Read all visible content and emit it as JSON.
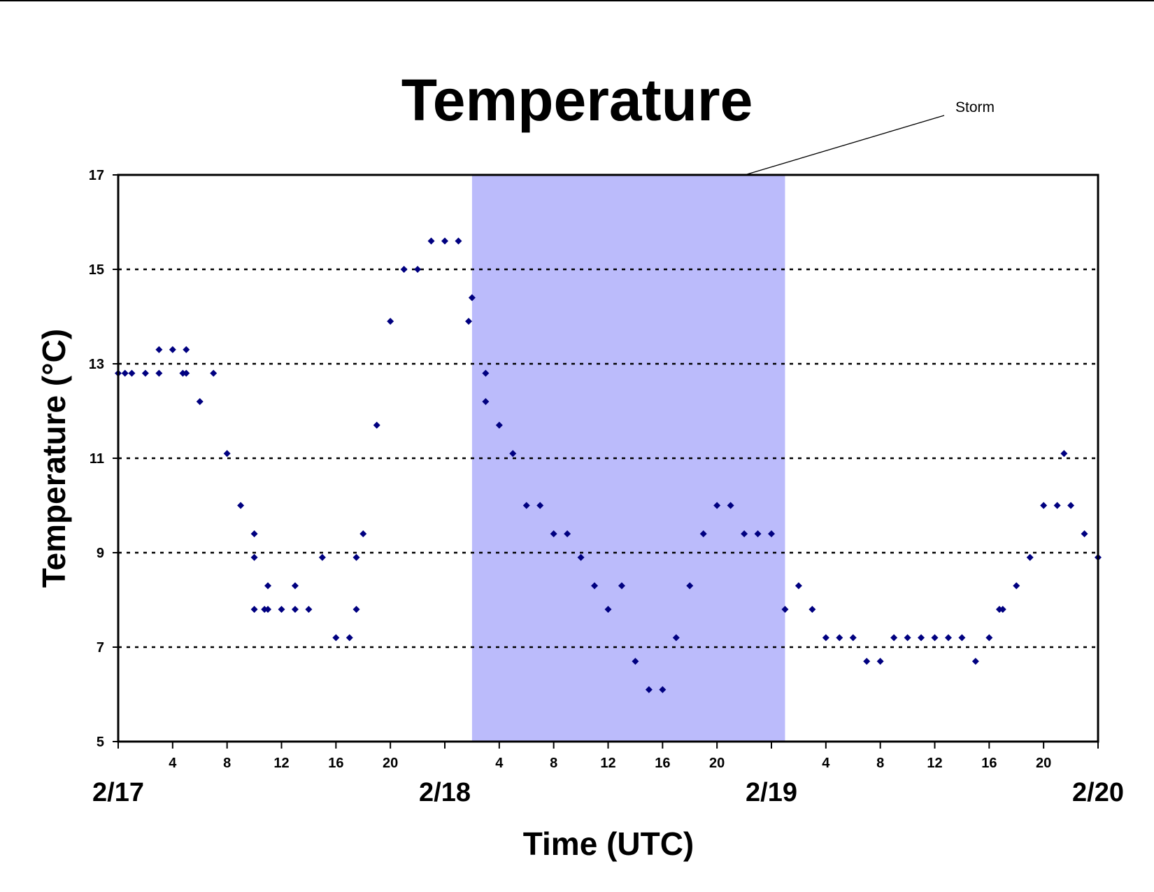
{
  "chart_data": {
    "type": "scatter",
    "title": "Temperature",
    "xlabel": "Time (UTC)",
    "ylabel": "Temperature (°C)",
    "ylim": [
      5,
      17
    ],
    "yticks": [
      5,
      7,
      9,
      11,
      13,
      15,
      17
    ],
    "xlim": [
      "2/17 00:00",
      "2/20 00:00"
    ],
    "hour_tick_labels": [
      "4",
      "8",
      "12",
      "16",
      "20",
      "4",
      "8",
      "12",
      "16",
      "20",
      "4",
      "8",
      "12",
      "16",
      "20"
    ],
    "date_labels": [
      "2/17",
      "2/18",
      "2/19",
      "2/20"
    ],
    "grid": "horizontal dotted",
    "marker": "diamond",
    "colors": {
      "points": "#000080",
      "storm_band": "#bbbbfb"
    },
    "storm": {
      "label": "Storm",
      "start": "2/18 02:00",
      "end": "2/19 01:00"
    },
    "series": [
      {
        "x": [
          "2/17 00:00",
          "2/17 00:30",
          "2/17 01:00",
          "2/17 02:00",
          "2/17 03:00",
          "2/17 03:00",
          "2/17 04:00",
          "2/17 04:45",
          "2/17 05:00",
          "2/17 05:00",
          "2/17 06:00",
          "2/17 07:00",
          "2/17 08:00",
          "2/17 09:00",
          "2/17 10:00",
          "2/17 10:00",
          "2/17 10:00",
          "2/17 10:45",
          "2/17 11:00",
          "2/17 11:00",
          "2/17 12:00",
          "2/17 13:00",
          "2/17 13:00",
          "2/17 14:00",
          "2/17 15:00",
          "2/17 16:00",
          "2/17 17:00",
          "2/17 17:30",
          "2/17 17:30",
          "2/17 18:00",
          "2/17 19:00",
          "2/17 20:00",
          "2/17 21:00",
          "2/17 22:00",
          "2/17 23:00",
          "2/18 00:00",
          "2/18 01:00",
          "2/18 01:45",
          "2/18 02:00",
          "2/18 03:00",
          "2/18 03:00",
          "2/18 04:00",
          "2/18 05:00",
          "2/18 06:00",
          "2/18 07:00",
          "2/18 08:00",
          "2/18 09:00",
          "2/18 10:00",
          "2/18 11:00",
          "2/18 12:00",
          "2/18 13:00",
          "2/18 14:00",
          "2/18 15:00",
          "2/18 16:00",
          "2/18 17:00",
          "2/18 18:00",
          "2/18 19:00",
          "2/18 20:00",
          "2/18 21:00",
          "2/18 22:00",
          "2/18 23:00",
          "2/19 00:00",
          "2/19 01:00",
          "2/19 02:00",
          "2/19 03:00",
          "2/19 04:00",
          "2/19 05:00",
          "2/19 06:00",
          "2/19 07:00",
          "2/19 08:00",
          "2/19 09:00",
          "2/19 10:00",
          "2/19 11:00",
          "2/19 12:00",
          "2/19 13:00",
          "2/19 14:00",
          "2/19 15:00",
          "2/19 16:00",
          "2/19 16:45",
          "2/19 17:00",
          "2/19 18:00",
          "2/19 19:00",
          "2/19 20:00",
          "2/19 21:00",
          "2/19 21:30",
          "2/19 22:00",
          "2/19 23:00",
          "2/20 00:00"
        ],
        "y": [
          12.8,
          12.8,
          12.8,
          12.8,
          12.8,
          13.3,
          13.3,
          12.8,
          13.3,
          12.8,
          12.2,
          12.8,
          11.1,
          10.0,
          9.4,
          8.9,
          7.8,
          7.8,
          7.8,
          8.3,
          7.8,
          7.8,
          8.3,
          7.8,
          8.9,
          7.2,
          7.2,
          7.8,
          8.9,
          9.4,
          11.7,
          13.9,
          15.0,
          15.0,
          15.6,
          15.6,
          15.6,
          13.9,
          14.4,
          12.8,
          12.2,
          11.7,
          11.1,
          10.0,
          10.0,
          9.4,
          9.4,
          8.9,
          8.3,
          7.8,
          8.3,
          6.7,
          6.1,
          6.1,
          7.2,
          8.3,
          9.4,
          10.0,
          10.0,
          9.4,
          9.4,
          9.4,
          7.8,
          8.3,
          7.8,
          7.2,
          7.2,
          7.2,
          6.7,
          6.7,
          7.2,
          7.2,
          7.2,
          7.2,
          7.2,
          7.2,
          6.7,
          7.2,
          7.8,
          7.8,
          8.3,
          8.9,
          10.0,
          10.0,
          11.1,
          10.0,
          9.4,
          8.9
        ]
      }
    ]
  }
}
